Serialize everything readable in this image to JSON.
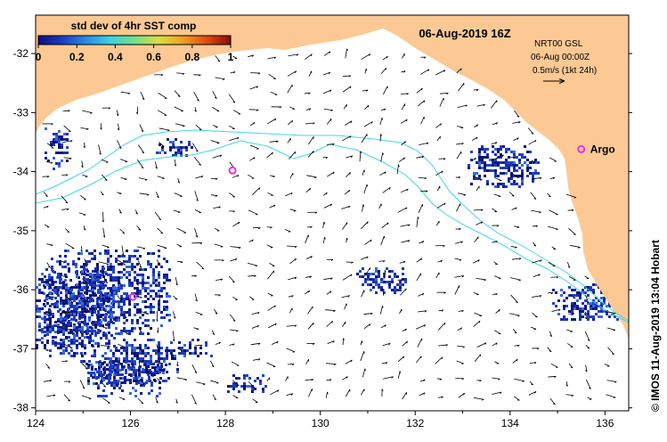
{
  "header": {
    "date": "06-Aug-2019 16Z"
  },
  "colorbar": {
    "title": "std dev of 4hr SST comp",
    "ticks": [
      "0",
      "0.2",
      "0.4",
      "0.6",
      "0.8",
      "1"
    ],
    "tick_values": [
      0,
      0.2,
      0.4,
      0.6,
      0.8,
      1
    ],
    "colors": [
      "#10107a",
      "#1a3cc8",
      "#2a8ce6",
      "#39d4e6",
      "#6fe08a",
      "#d8e040",
      "#f0a020",
      "#e04a14",
      "#8a0a0a"
    ]
  },
  "info_box": {
    "line1": "NRT00 GSL",
    "line2": "06-Aug 00:00Z",
    "line3": "0.5m/s (1kt 24h)"
  },
  "axes": {
    "x_ticks": [
      "124",
      "126",
      "128",
      "130",
      "132",
      "134",
      "136"
    ],
    "x_values": [
      124,
      126,
      128,
      130,
      132,
      134,
      136
    ],
    "y_ticks": [
      "-32",
      "-33",
      "-34",
      "-35",
      "-36",
      "-37",
      "-38"
    ],
    "y_values": [
      -32,
      -33,
      -34,
      -35,
      -36,
      -37,
      -38
    ],
    "xlim": [
      124,
      136.5
    ],
    "ylim": [
      -38.05,
      -31.35
    ]
  },
  "markers": [
    {
      "label": "Argo",
      "lon": 135.5,
      "lat": -33.62
    },
    {
      "label": "",
      "lon": 128.15,
      "lat": -33.98
    },
    {
      "label": "",
      "lon": 126.05,
      "lat": -36.12
    }
  ],
  "credit": "© IMOS 11-Aug-2019 13:04 Hobart",
  "colors": {
    "land": "#fcc994",
    "contour": "#3fd8e8",
    "marker": "#e632e6",
    "arrow": "#000000"
  }
}
